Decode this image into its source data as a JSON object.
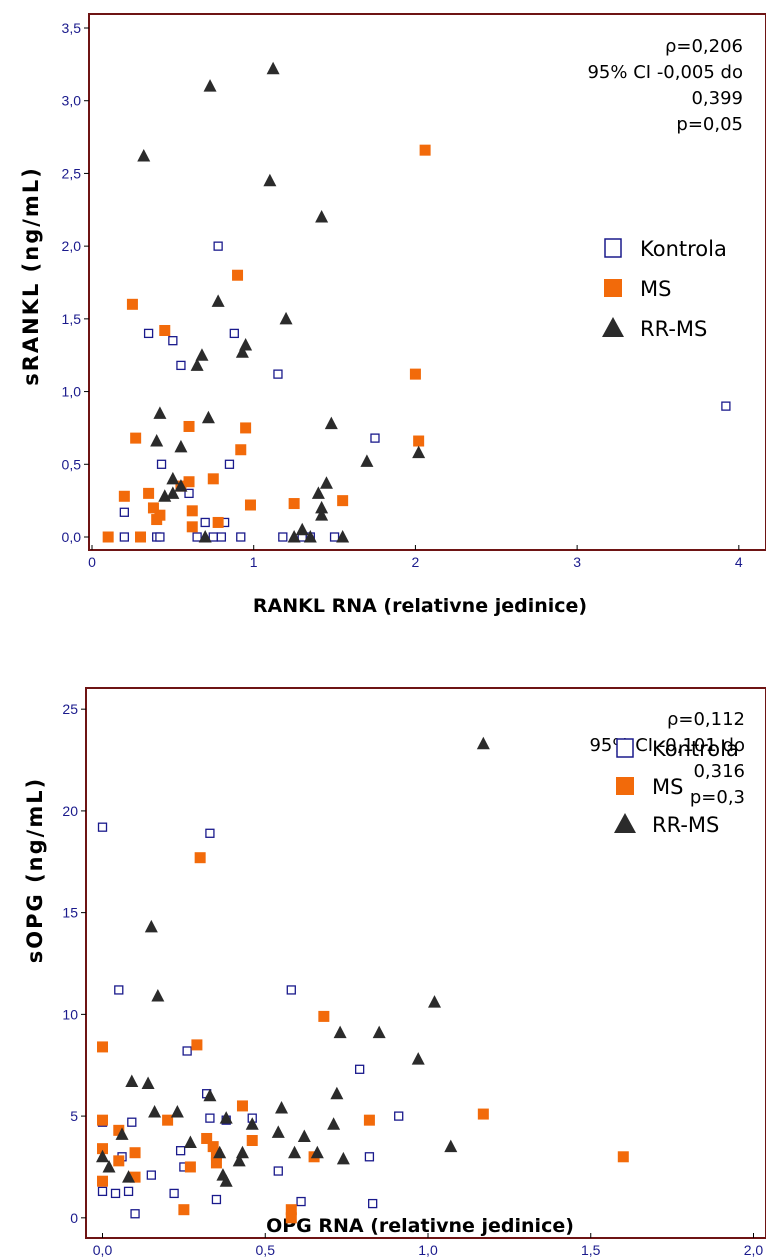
{
  "chart_data": [
    {
      "type": "scatter",
      "xlabel": "RANKL RNA (relativne jedinice)",
      "ylabel": "sRANKL (ng/mL)",
      "xlim": [
        0,
        4.1
      ],
      "ylim": [
        0,
        3.5
      ],
      "x_ticks": [
        "0",
        "1",
        "2",
        "3",
        "4"
      ],
      "y_ticks": [
        "0,0",
        "0,5",
        "1,0",
        "1,5",
        "2,0",
        "2,5",
        "3,0",
        "3,5"
      ],
      "annotation": [
        "ρ=0,206",
        "95% CI -0,005 do",
        "0,399",
        "p=0,05"
      ],
      "legend": [
        "Kontrola",
        "MS",
        "RR-MS"
      ],
      "legend_position": "right",
      "colors": {
        "Kontrola": "#1a1a8c",
        "MS": "#f26a0a",
        "RR-MS": "#2b2b2b",
        "frame": "#6e1414"
      },
      "series": [
        {
          "name": "Kontrola",
          "marker": "open-square",
          "points": [
            [
              0.2,
              0.17
            ],
            [
              0.2,
              0.0
            ],
            [
              0.35,
              1.4
            ],
            [
              0.4,
              0.0
            ],
            [
              0.42,
              0.0
            ],
            [
              0.43,
              0.5
            ],
            [
              0.45,
              1.42
            ],
            [
              0.5,
              1.35
            ],
            [
              0.55,
              1.18
            ],
            [
              0.6,
              0.3
            ],
            [
              0.65,
              0.0
            ],
            [
              0.7,
              0.1
            ],
            [
              0.75,
              0.0
            ],
            [
              0.78,
              2.0
            ],
            [
              0.8,
              0.0
            ],
            [
              0.82,
              0.1
            ],
            [
              0.85,
              0.5
            ],
            [
              0.88,
              1.4
            ],
            [
              0.92,
              0.0
            ],
            [
              1.15,
              1.12
            ],
            [
              1.18,
              0.0
            ],
            [
              1.3,
              0.0
            ],
            [
              1.35,
              0.0
            ],
            [
              1.5,
              0.0
            ],
            [
              1.75,
              0.68
            ],
            [
              3.92,
              0.9
            ]
          ]
        },
        {
          "name": "MS",
          "marker": "filled-square",
          "points": [
            [
              0.1,
              0.0
            ],
            [
              0.2,
              0.28
            ],
            [
              0.25,
              1.6
            ],
            [
              0.27,
              0.68
            ],
            [
              0.3,
              0.0
            ],
            [
              0.35,
              0.3
            ],
            [
              0.38,
              0.2
            ],
            [
              0.4,
              0.12
            ],
            [
              0.42,
              0.15
            ],
            [
              0.45,
              1.42
            ],
            [
              0.55,
              0.35
            ],
            [
              0.6,
              0.76
            ],
            [
              0.6,
              0.38
            ],
            [
              0.62,
              0.18
            ],
            [
              0.62,
              0.07
            ],
            [
              0.75,
              0.4
            ],
            [
              0.78,
              0.1
            ],
            [
              0.9,
              1.8
            ],
            [
              0.92,
              0.6
            ],
            [
              0.95,
              0.75
            ],
            [
              0.98,
              0.22
            ],
            [
              1.25,
              0.23
            ],
            [
              1.55,
              0.25
            ],
            [
              2.0,
              1.12
            ],
            [
              2.02,
              0.66
            ],
            [
              2.06,
              2.66
            ]
          ]
        },
        {
          "name": "RR-MS",
          "marker": "filled-triangle",
          "points": [
            [
              0.32,
              2.62
            ],
            [
              0.4,
              0.66
            ],
            [
              0.42,
              0.85
            ],
            [
              0.45,
              0.28
            ],
            [
              0.5,
              0.3
            ],
            [
              0.5,
              0.4
            ],
            [
              0.55,
              0.62
            ],
            [
              0.55,
              0.35
            ],
            [
              0.65,
              1.18
            ],
            [
              0.68,
              1.25
            ],
            [
              0.7,
              0.0
            ],
            [
              0.72,
              0.82
            ],
            [
              0.73,
              3.1
            ],
            [
              0.78,
              1.62
            ],
            [
              0.93,
              1.27
            ],
            [
              0.95,
              1.32
            ],
            [
              1.1,
              2.45
            ],
            [
              1.12,
              3.22
            ],
            [
              1.2,
              1.5
            ],
            [
              1.25,
              0.0
            ],
            [
              1.3,
              0.05
            ],
            [
              1.35,
              0.0
            ],
            [
              1.4,
              0.3
            ],
            [
              1.42,
              0.2
            ],
            [
              1.42,
              0.15
            ],
            [
              1.42,
              2.2
            ],
            [
              1.45,
              0.37
            ],
            [
              1.48,
              0.78
            ],
            [
              1.55,
              0.0
            ],
            [
              1.7,
              0.52
            ],
            [
              2.02,
              0.58
            ]
          ]
        }
      ]
    },
    {
      "type": "scatter",
      "xlabel": "OPG RNA (relativne jedinice)",
      "ylabel": "sOPG (ng/mL)",
      "xlim": [
        -0.02,
        2.02
      ],
      "ylim": [
        -0.5,
        25.5
      ],
      "x_ticks": [
        "0,0",
        "0,5",
        "1,0",
        "1,5",
        "2,0"
      ],
      "y_ticks": [
        "0",
        "5",
        "10",
        "15",
        "20",
        "25"
      ],
      "annotation": [
        "ρ=0,112",
        "95% CI -0,101 do",
        "0,316",
        "p=0,3"
      ],
      "legend": [
        "Kontrola",
        "MS",
        "RR-MS"
      ],
      "legend_position": "right",
      "colors": {
        "Kontrola": "#1a1a8c",
        "MS": "#f26a0a",
        "RR-MS": "#2b2b2b",
        "frame": "#6e1414"
      },
      "series": [
        {
          "name": "Kontrola",
          "marker": "open-square",
          "points": [
            [
              0.0,
              19.2
            ],
            [
              0.0,
              4.7
            ],
            [
              0.0,
              1.3
            ],
            [
              0.04,
              1.2
            ],
            [
              0.05,
              11.2
            ],
            [
              0.06,
              3.0
            ],
            [
              0.08,
              1.3
            ],
            [
              0.09,
              4.7
            ],
            [
              0.1,
              0.2
            ],
            [
              0.15,
              2.1
            ],
            [
              0.22,
              1.2
            ],
            [
              0.24,
              3.3
            ],
            [
              0.25,
              2.5
            ],
            [
              0.26,
              8.2
            ],
            [
              0.32,
              6.1
            ],
            [
              0.33,
              4.9
            ],
            [
              0.33,
              18.9
            ],
            [
              0.35,
              0.9
            ],
            [
              0.38,
              4.8
            ],
            [
              0.46,
              4.9
            ],
            [
              0.54,
              2.3
            ],
            [
              0.58,
              11.2
            ],
            [
              0.61,
              0.8
            ],
            [
              0.79,
              7.3
            ],
            [
              0.82,
              3.0
            ],
            [
              0.83,
              0.7
            ],
            [
              0.91,
              5.0
            ]
          ]
        },
        {
          "name": "MS",
          "marker": "filled-square",
          "points": [
            [
              0.0,
              8.4
            ],
            [
              0.0,
              4.8
            ],
            [
              0.0,
              3.4
            ],
            [
              0.0,
              1.8
            ],
            [
              0.05,
              4.3
            ],
            [
              0.05,
              2.8
            ],
            [
              0.1,
              3.2
            ],
            [
              0.1,
              2.0
            ],
            [
              0.2,
              4.8
            ],
            [
              0.25,
              0.4
            ],
            [
              0.27,
              2.5
            ],
            [
              0.29,
              8.5
            ],
            [
              0.3,
              17.7
            ],
            [
              0.32,
              3.9
            ],
            [
              0.34,
              3.5
            ],
            [
              0.35,
              3.1
            ],
            [
              0.35,
              2.7
            ],
            [
              0.43,
              5.5
            ],
            [
              0.46,
              3.8
            ],
            [
              0.58,
              0.4
            ],
            [
              0.58,
              0.0
            ],
            [
              0.65,
              3.0
            ],
            [
              0.68,
              9.9
            ],
            [
              0.82,
              4.8
            ],
            [
              1.17,
              5.1
            ],
            [
              1.6,
              3.0
            ]
          ]
        },
        {
          "name": "RR-MS",
          "marker": "filled-triangle",
          "points": [
            [
              0.0,
              3.0
            ],
            [
              0.02,
              2.5
            ],
            [
              0.06,
              4.1
            ],
            [
              0.08,
              2.0
            ],
            [
              0.09,
              6.7
            ],
            [
              0.14,
              6.6
            ],
            [
              0.15,
              14.3
            ],
            [
              0.16,
              5.2
            ],
            [
              0.17,
              10.9
            ],
            [
              0.23,
              5.2
            ],
            [
              0.27,
              3.7
            ],
            [
              0.33,
              6.0
            ],
            [
              0.36,
              3.2
            ],
            [
              0.37,
              2.1
            ],
            [
              0.38,
              1.8
            ],
            [
              0.38,
              4.9
            ],
            [
              0.42,
              2.8
            ],
            [
              0.43,
              3.2
            ],
            [
              0.46,
              4.6
            ],
            [
              0.54,
              4.2
            ],
            [
              0.55,
              5.4
            ],
            [
              0.59,
              3.2
            ],
            [
              0.62,
              4.0
            ],
            [
              0.66,
              3.2
            ],
            [
              0.71,
              4.6
            ],
            [
              0.72,
              6.1
            ],
            [
              0.73,
              9.1
            ],
            [
              0.74,
              2.9
            ],
            [
              0.85,
              9.1
            ],
            [
              0.97,
              7.8
            ],
            [
              1.02,
              10.6
            ],
            [
              1.07,
              3.5
            ],
            [
              1.17,
              23.3
            ]
          ]
        }
      ]
    }
  ]
}
